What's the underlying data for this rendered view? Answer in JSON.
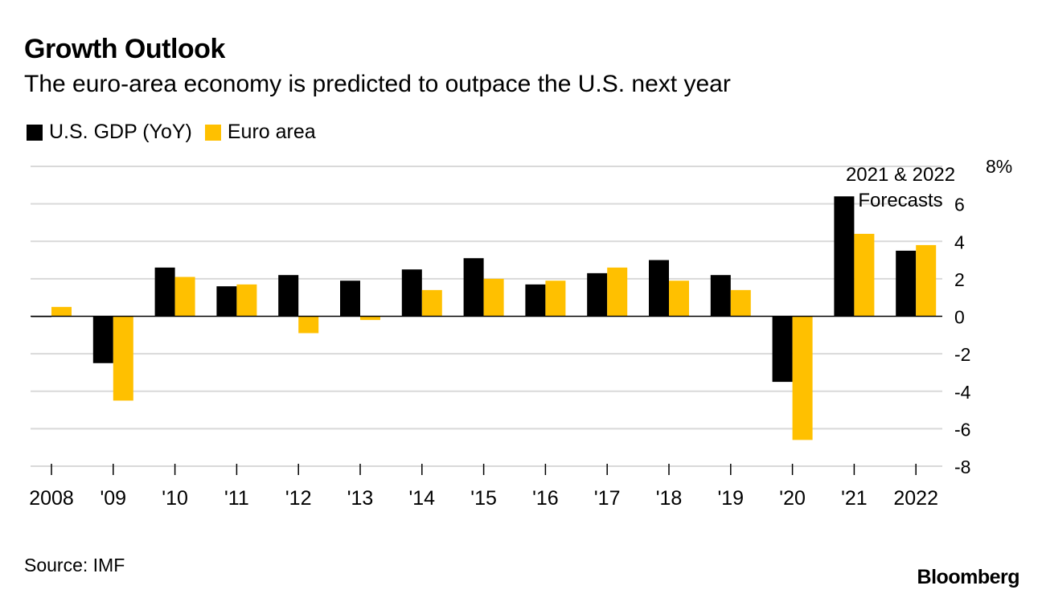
{
  "title": "Growth Outlook",
  "subtitle": "The euro-area economy is predicted to outpace the U.S. next year",
  "source": "Source: IMF",
  "brand": "Bloomberg",
  "colors": {
    "us": "#000000",
    "euro": "#ffc000",
    "grid": "#d9d9d9",
    "zero": "#000000"
  },
  "chart_data": {
    "type": "bar",
    "categories": [
      "2008",
      "'09",
      "'10",
      "'11",
      "'12",
      "'13",
      "'14",
      "'15",
      "'16",
      "'17",
      "'18",
      "'19",
      "'20",
      "'21",
      "2022"
    ],
    "series": [
      {
        "name": "U.S. GDP (YoY)",
        "values": [
          0.0,
          -2.5,
          2.6,
          1.6,
          2.2,
          1.9,
          2.5,
          3.1,
          1.7,
          2.3,
          3.0,
          2.2,
          -3.5,
          6.4,
          3.5
        ]
      },
      {
        "name": "Euro area",
        "values": [
          0.5,
          -4.5,
          2.1,
          1.7,
          -0.9,
          -0.2,
          1.4,
          2.0,
          1.9,
          2.6,
          1.9,
          1.4,
          -6.6,
          4.4,
          3.8
        ]
      }
    ],
    "ylim": [
      -8,
      8
    ],
    "yticks": [
      -8,
      -6,
      -4,
      -2,
      0,
      2,
      4,
      6,
      8
    ],
    "ytick_labels": [
      "-8",
      "-6",
      "-4",
      "-2",
      "0",
      "2",
      "4",
      "6",
      "8%"
    ],
    "grid": true,
    "legend_position": "top-left",
    "annotation": {
      "line1": "2021 & 2022",
      "line2": "Forecasts"
    }
  }
}
